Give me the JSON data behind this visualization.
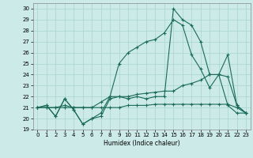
{
  "xlabel": "Humidex (Indice chaleur)",
  "xlim": [
    -0.5,
    23.5
  ],
  "ylim": [
    19,
    30.5
  ],
  "yticks": [
    19,
    20,
    21,
    22,
    23,
    24,
    25,
    26,
    27,
    28,
    29,
    30
  ],
  "xticks": [
    0,
    1,
    2,
    3,
    4,
    5,
    6,
    7,
    8,
    9,
    10,
    11,
    12,
    13,
    14,
    15,
    16,
    17,
    18,
    19,
    20,
    21,
    22,
    23
  ],
  "background_color": "#cceae7",
  "grid_color": "#a8d5d0",
  "line_color": "#1a6b5a",
  "series": [
    [
      21,
      21.2,
      20.2,
      21.8,
      20.8,
      19.5,
      20.0,
      20.2,
      21.8,
      22.0,
      21.8,
      22.0,
      21.8,
      22.0,
      22.0,
      30.0,
      29.0,
      28.5,
      27.0,
      24.0,
      24.0,
      21.2,
      20.5,
      20.5
    ],
    [
      21,
      21.2,
      20.2,
      21.8,
      20.8,
      19.5,
      20.0,
      20.5,
      22.0,
      25.0,
      26.0,
      26.5,
      27.0,
      27.2,
      27.8,
      29.0,
      28.5,
      25.8,
      24.5,
      22.8,
      24.0,
      23.8,
      21.2,
      20.5
    ],
    [
      21,
      21.0,
      21.0,
      21.2,
      21.0,
      21.0,
      21.0,
      21.5,
      22.0,
      22.0,
      22.0,
      22.2,
      22.3,
      22.4,
      22.5,
      22.5,
      23.0,
      23.2,
      23.5,
      24.0,
      24.0,
      25.8,
      21.2,
      20.5
    ],
    [
      21,
      21.0,
      21.0,
      21.0,
      21.0,
      21.0,
      21.0,
      21.0,
      21.0,
      21.0,
      21.2,
      21.2,
      21.2,
      21.3,
      21.3,
      21.3,
      21.3,
      21.3,
      21.3,
      21.3,
      21.3,
      21.3,
      21.0,
      20.5
    ]
  ]
}
